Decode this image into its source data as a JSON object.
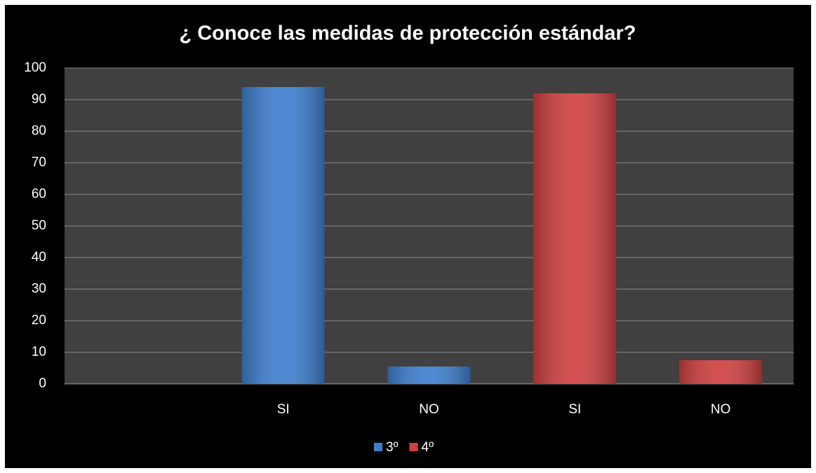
{
  "chart_data": {
    "type": "bar",
    "title": "¿ Conoce las medidas de protección estándar?",
    "categories": [
      null,
      "SI",
      "NO",
      "SI",
      "NO"
    ],
    "series": [
      {
        "name": "3º",
        "color": "#3f7fd0",
        "values": [
          null,
          94,
          5.5,
          null,
          null
        ]
      },
      {
        "name": "4º",
        "color": "#d04040",
        "values": [
          null,
          null,
          null,
          92,
          7.5
        ]
      }
    ],
    "ylim": [
      0,
      100
    ],
    "yticks": [
      0,
      10,
      20,
      30,
      40,
      50,
      60,
      70,
      80,
      90,
      100
    ],
    "grid": true,
    "legend": "bottom"
  }
}
